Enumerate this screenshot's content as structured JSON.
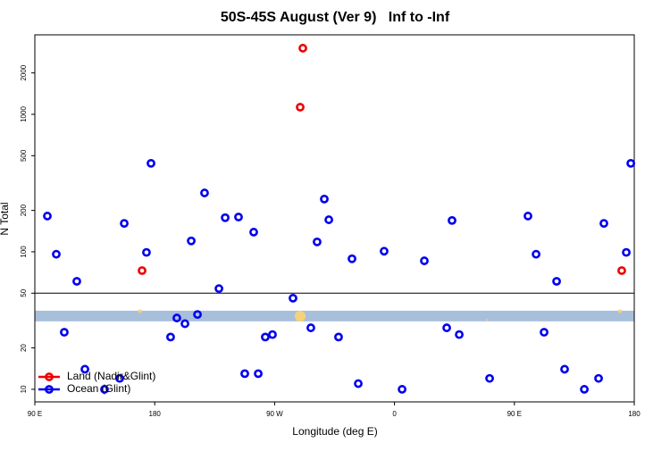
{
  "chart_data": {
    "type": "scatter",
    "title": "50S-45S August (Ver 9)   Inf to -Inf",
    "x_label": "Longitude (deg E)",
    "y_label": "N Total",
    "log_y": true,
    "legend": "bottom-left",
    "xlim": [
      90,
      540
    ],
    "ylim": [
      8.1,
      3785
    ],
    "xticks": [
      {
        "value": 90,
        "label": "90 E"
      },
      180,
      {
        "value": 270,
        "label": "90 W"
      },
      {
        "value": 360,
        "label": "0"
      },
      {
        "value": 450,
        "label": "90 E"
      },
      {
        "value": 540,
        "label": "180"
      }
    ],
    "yticks": [
      10,
      20,
      50,
      100,
      200,
      500,
      1000,
      2000
    ],
    "hline": 50,
    "band": {
      "range": [
        31.2,
        37.3
      ],
      "color": "#a8bfdc"
    },
    "series": [
      {
        "name": "Land (Nadir&Glint)",
        "color": "#ee0000",
        "x": [
          170.5,
          289.2,
          291.2,
          530.6
        ],
        "values": [
          73,
          1127,
          3027,
          73
        ]
      },
      {
        "name": "Ocean (Glint)",
        "color": "#0000ee",
        "x": [
          99.4,
          106.1,
          112.1,
          121.5,
          127.6,
          142.3,
          153.7,
          157.1,
          173.8,
          177.2,
          191.9,
          196.6,
          202.7,
          207.4,
          212.1,
          217.4,
          228.2,
          232.9,
          242.9,
          247.6,
          254.3,
          257.7,
          263.0,
          268.4,
          283.8,
          297.2,
          301.9,
          307.3,
          310.7,
          318.0,
          328.1,
          332.8,
          352.2,
          365.7,
          382.4,
          399.2,
          403.2,
          408.6,
          431.4,
          460.2,
          466.3,
          472.3,
          481.7,
          487.7,
          502.5,
          513.2,
          517.2,
          534.0,
          537.4
        ],
        "values": [
          182,
          96,
          26,
          61,
          14,
          10,
          12,
          161,
          99,
          440,
          24,
          33,
          30,
          120,
          35,
          268,
          54,
          177,
          179,
          13,
          139,
          13,
          24,
          25,
          46,
          28,
          118,
          242,
          171,
          24,
          89,
          11,
          101,
          10,
          86,
          28,
          169,
          25,
          12,
          182,
          96,
          26,
          61,
          14,
          10,
          12,
          161,
          99,
          440
        ]
      },
      {
        "color": "#f7d27a",
        "x": [
          169.1,
          289.2,
          429.4,
          529.3
        ],
        "values": [
          37,
          34,
          32,
          37
        ],
        "sizes": [
          2,
          6,
          1,
          2
        ]
      }
    ]
  }
}
